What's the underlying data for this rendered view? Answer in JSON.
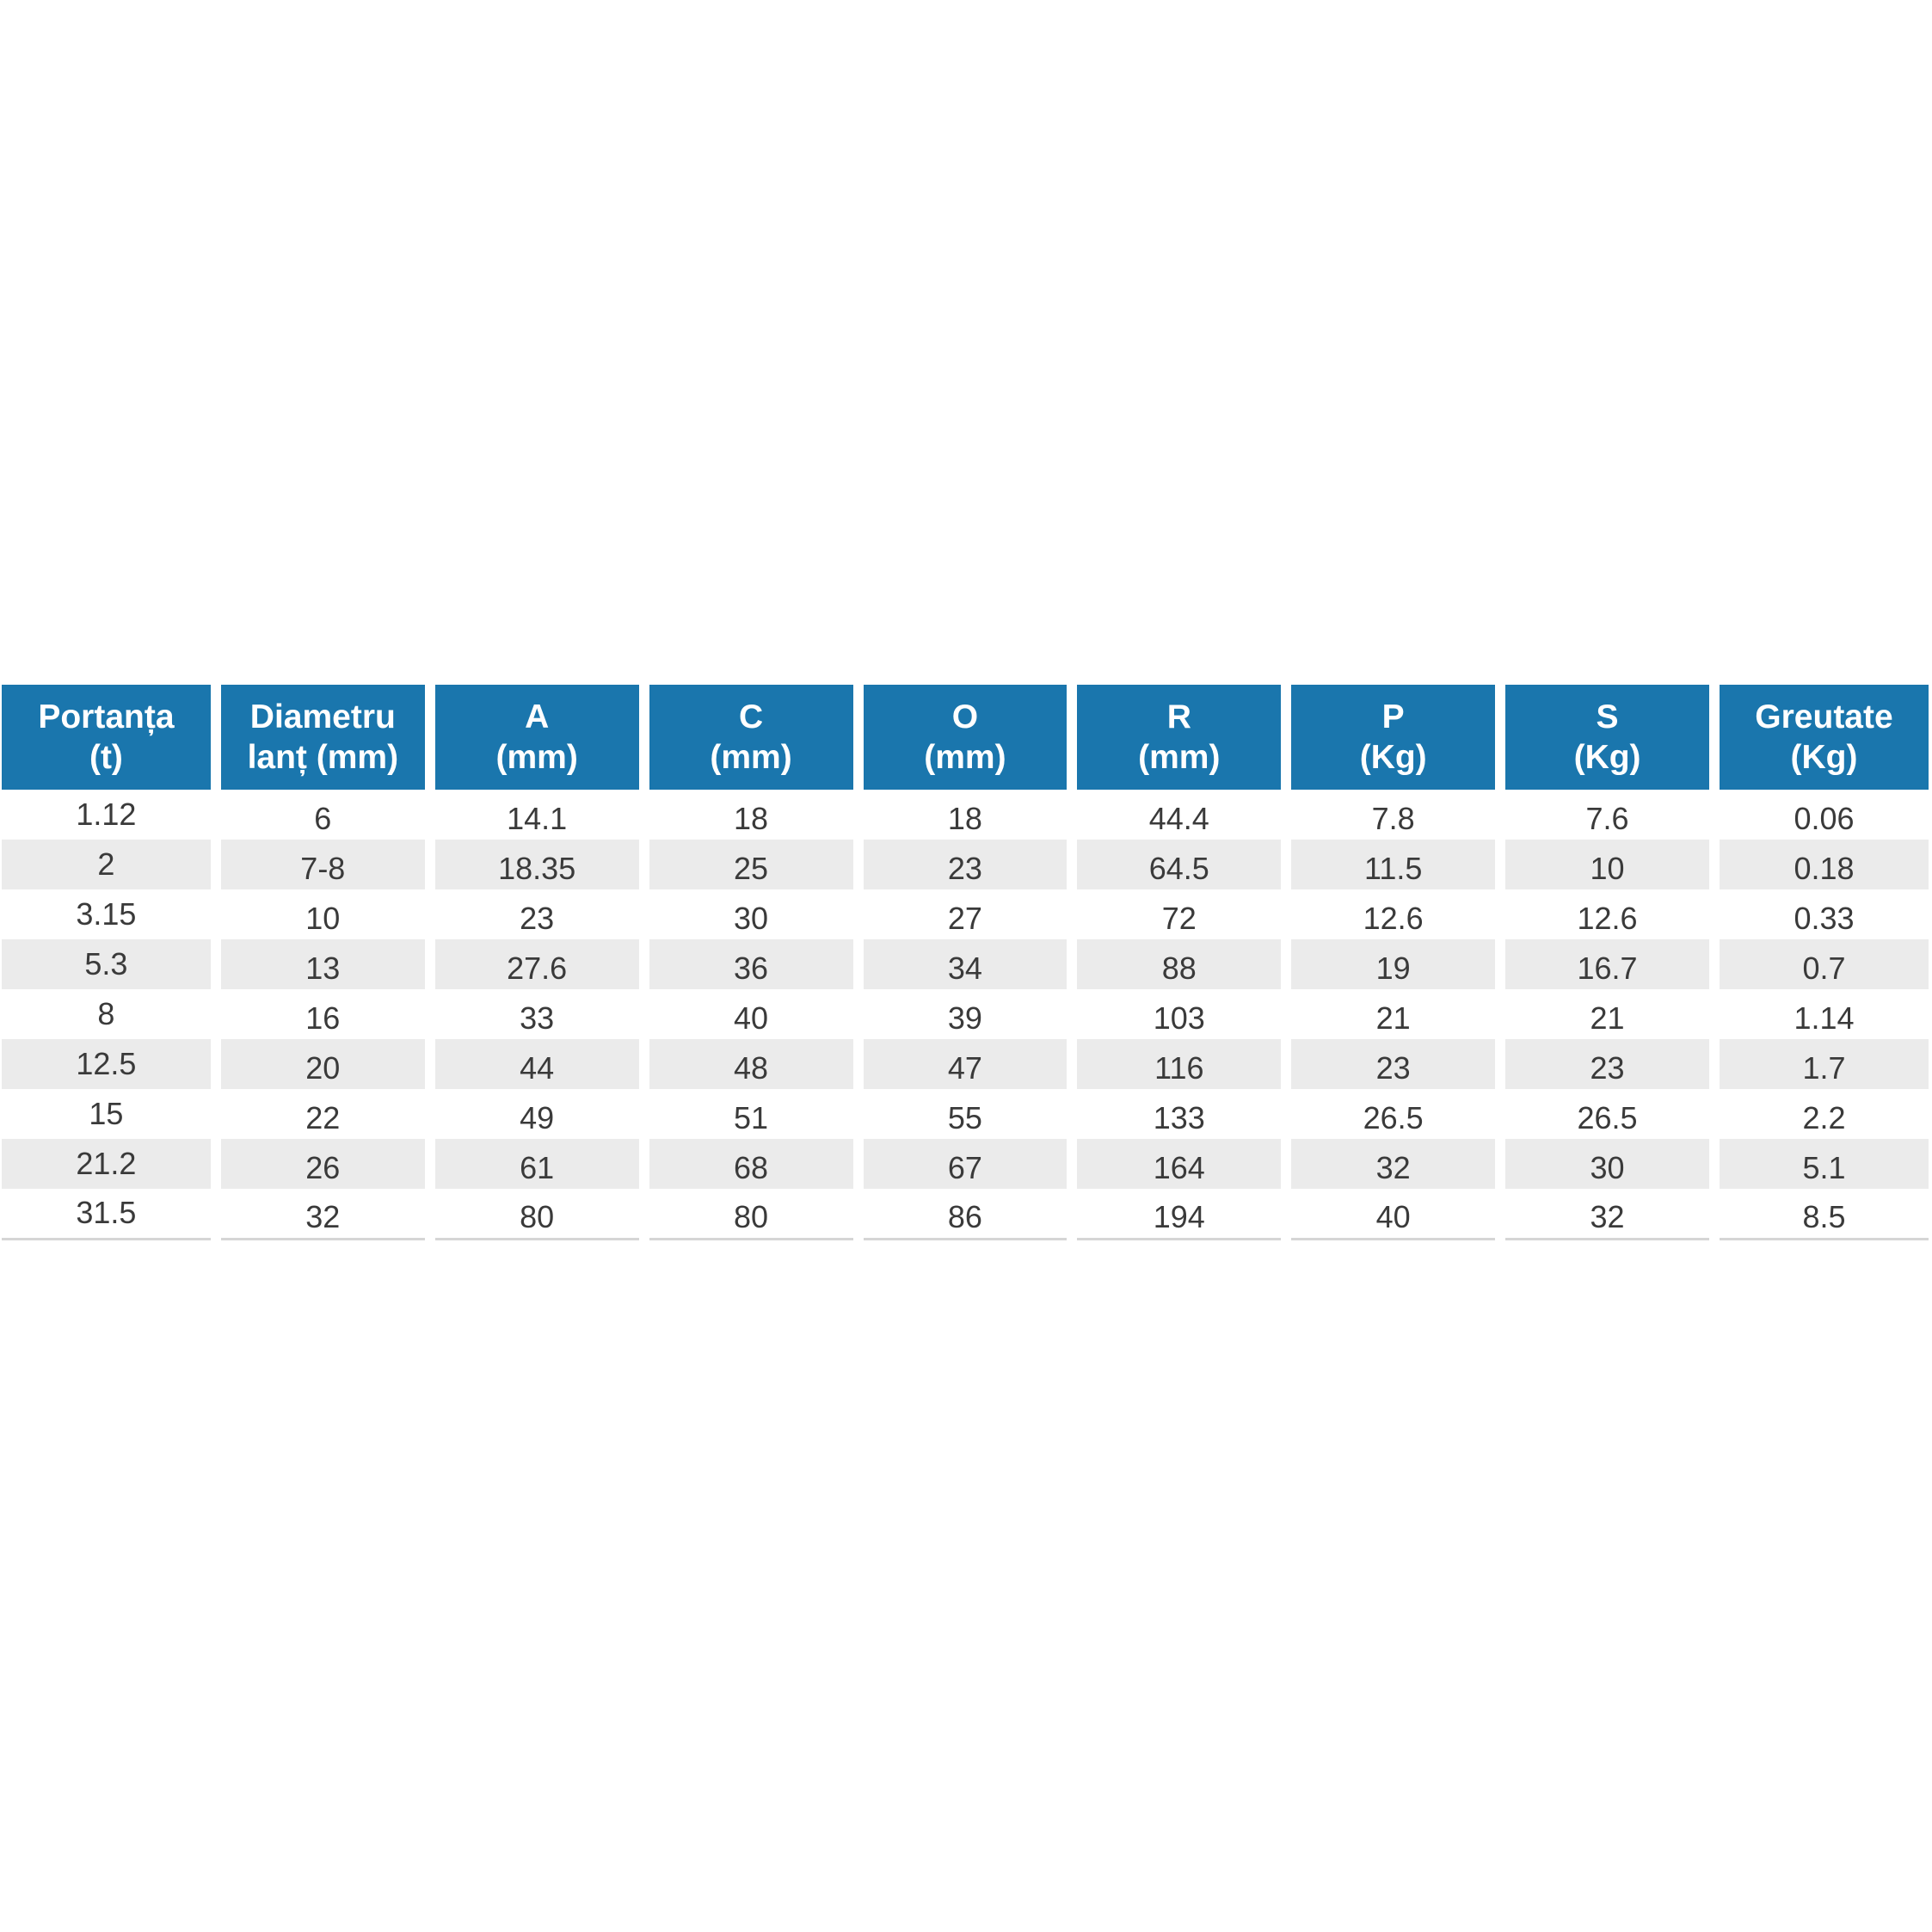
{
  "theme": {
    "header_bg": "#1a76ad",
    "header_text": "#ffffff",
    "row_alt_bg": "#ebebeb",
    "row_bg": "#ffffff",
    "body_text": "#3a3a3a",
    "bottom_rule": "#d6d6d6"
  },
  "chart_data": {
    "type": "table",
    "columns": [
      {
        "label": "Portanța",
        "unit": "(t)"
      },
      {
        "label": "Diametru",
        "unit": "lanț (mm)"
      },
      {
        "label": "A",
        "unit": "(mm)"
      },
      {
        "label": "C",
        "unit": "(mm)"
      },
      {
        "label": "O",
        "unit": "(mm)"
      },
      {
        "label": "R",
        "unit": "(mm)"
      },
      {
        "label": "P",
        "unit": "(Kg)"
      },
      {
        "label": "S",
        "unit": "(Kg)"
      },
      {
        "label": "Greutate",
        "unit": "(Kg)"
      }
    ],
    "rows": [
      [
        "1.12",
        "6",
        "14.1",
        "18",
        "18",
        "44.4",
        "7.8",
        "7.6",
        "0.06"
      ],
      [
        "2",
        "7-8",
        "18.35",
        "25",
        "23",
        "64.5",
        "11.5",
        "10",
        "0.18"
      ],
      [
        "3.15",
        "10",
        "23",
        "30",
        "27",
        "72",
        "12.6",
        "12.6",
        "0.33"
      ],
      [
        "5.3",
        "13",
        "27.6",
        "36",
        "34",
        "88",
        "19",
        "16.7",
        "0.7"
      ],
      [
        "8",
        "16",
        "33",
        "40",
        "39",
        "103",
        "21",
        "21",
        "1.14"
      ],
      [
        "12.5",
        "20",
        "44",
        "48",
        "47",
        "116",
        "23",
        "23",
        "1.7"
      ],
      [
        "15",
        "22",
        "49",
        "51",
        "55",
        "133",
        "26.5",
        "26.5",
        "2.2"
      ],
      [
        "21.2",
        "26",
        "61",
        "68",
        "67",
        "164",
        "32",
        "30",
        "5.1"
      ],
      [
        "31.5",
        "32",
        "80",
        "80",
        "86",
        "194",
        "40",
        "32",
        "8.5"
      ]
    ]
  }
}
